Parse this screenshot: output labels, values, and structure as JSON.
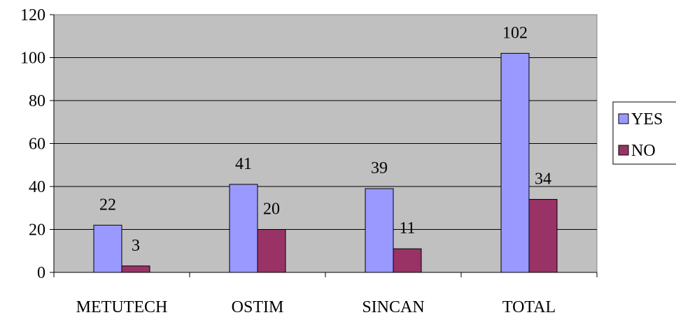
{
  "chart_data": {
    "type": "bar",
    "categories": [
      "METUTECH",
      "OSTIM",
      "SINCAN",
      "TOTAL"
    ],
    "series": [
      {
        "name": "YES",
        "values": [
          22,
          41,
          39,
          102
        ],
        "color": "#9999ff"
      },
      {
        "name": "NO",
        "values": [
          3,
          20,
          11,
          34
        ],
        "color": "#993366"
      }
    ],
    "yticks": [
      "0",
      "20",
      "40",
      "60",
      "80",
      "100",
      "120"
    ],
    "ylim": [
      0,
      120
    ],
    "grid": true,
    "legend": "right",
    "plot_background": "#c0c0c0"
  }
}
